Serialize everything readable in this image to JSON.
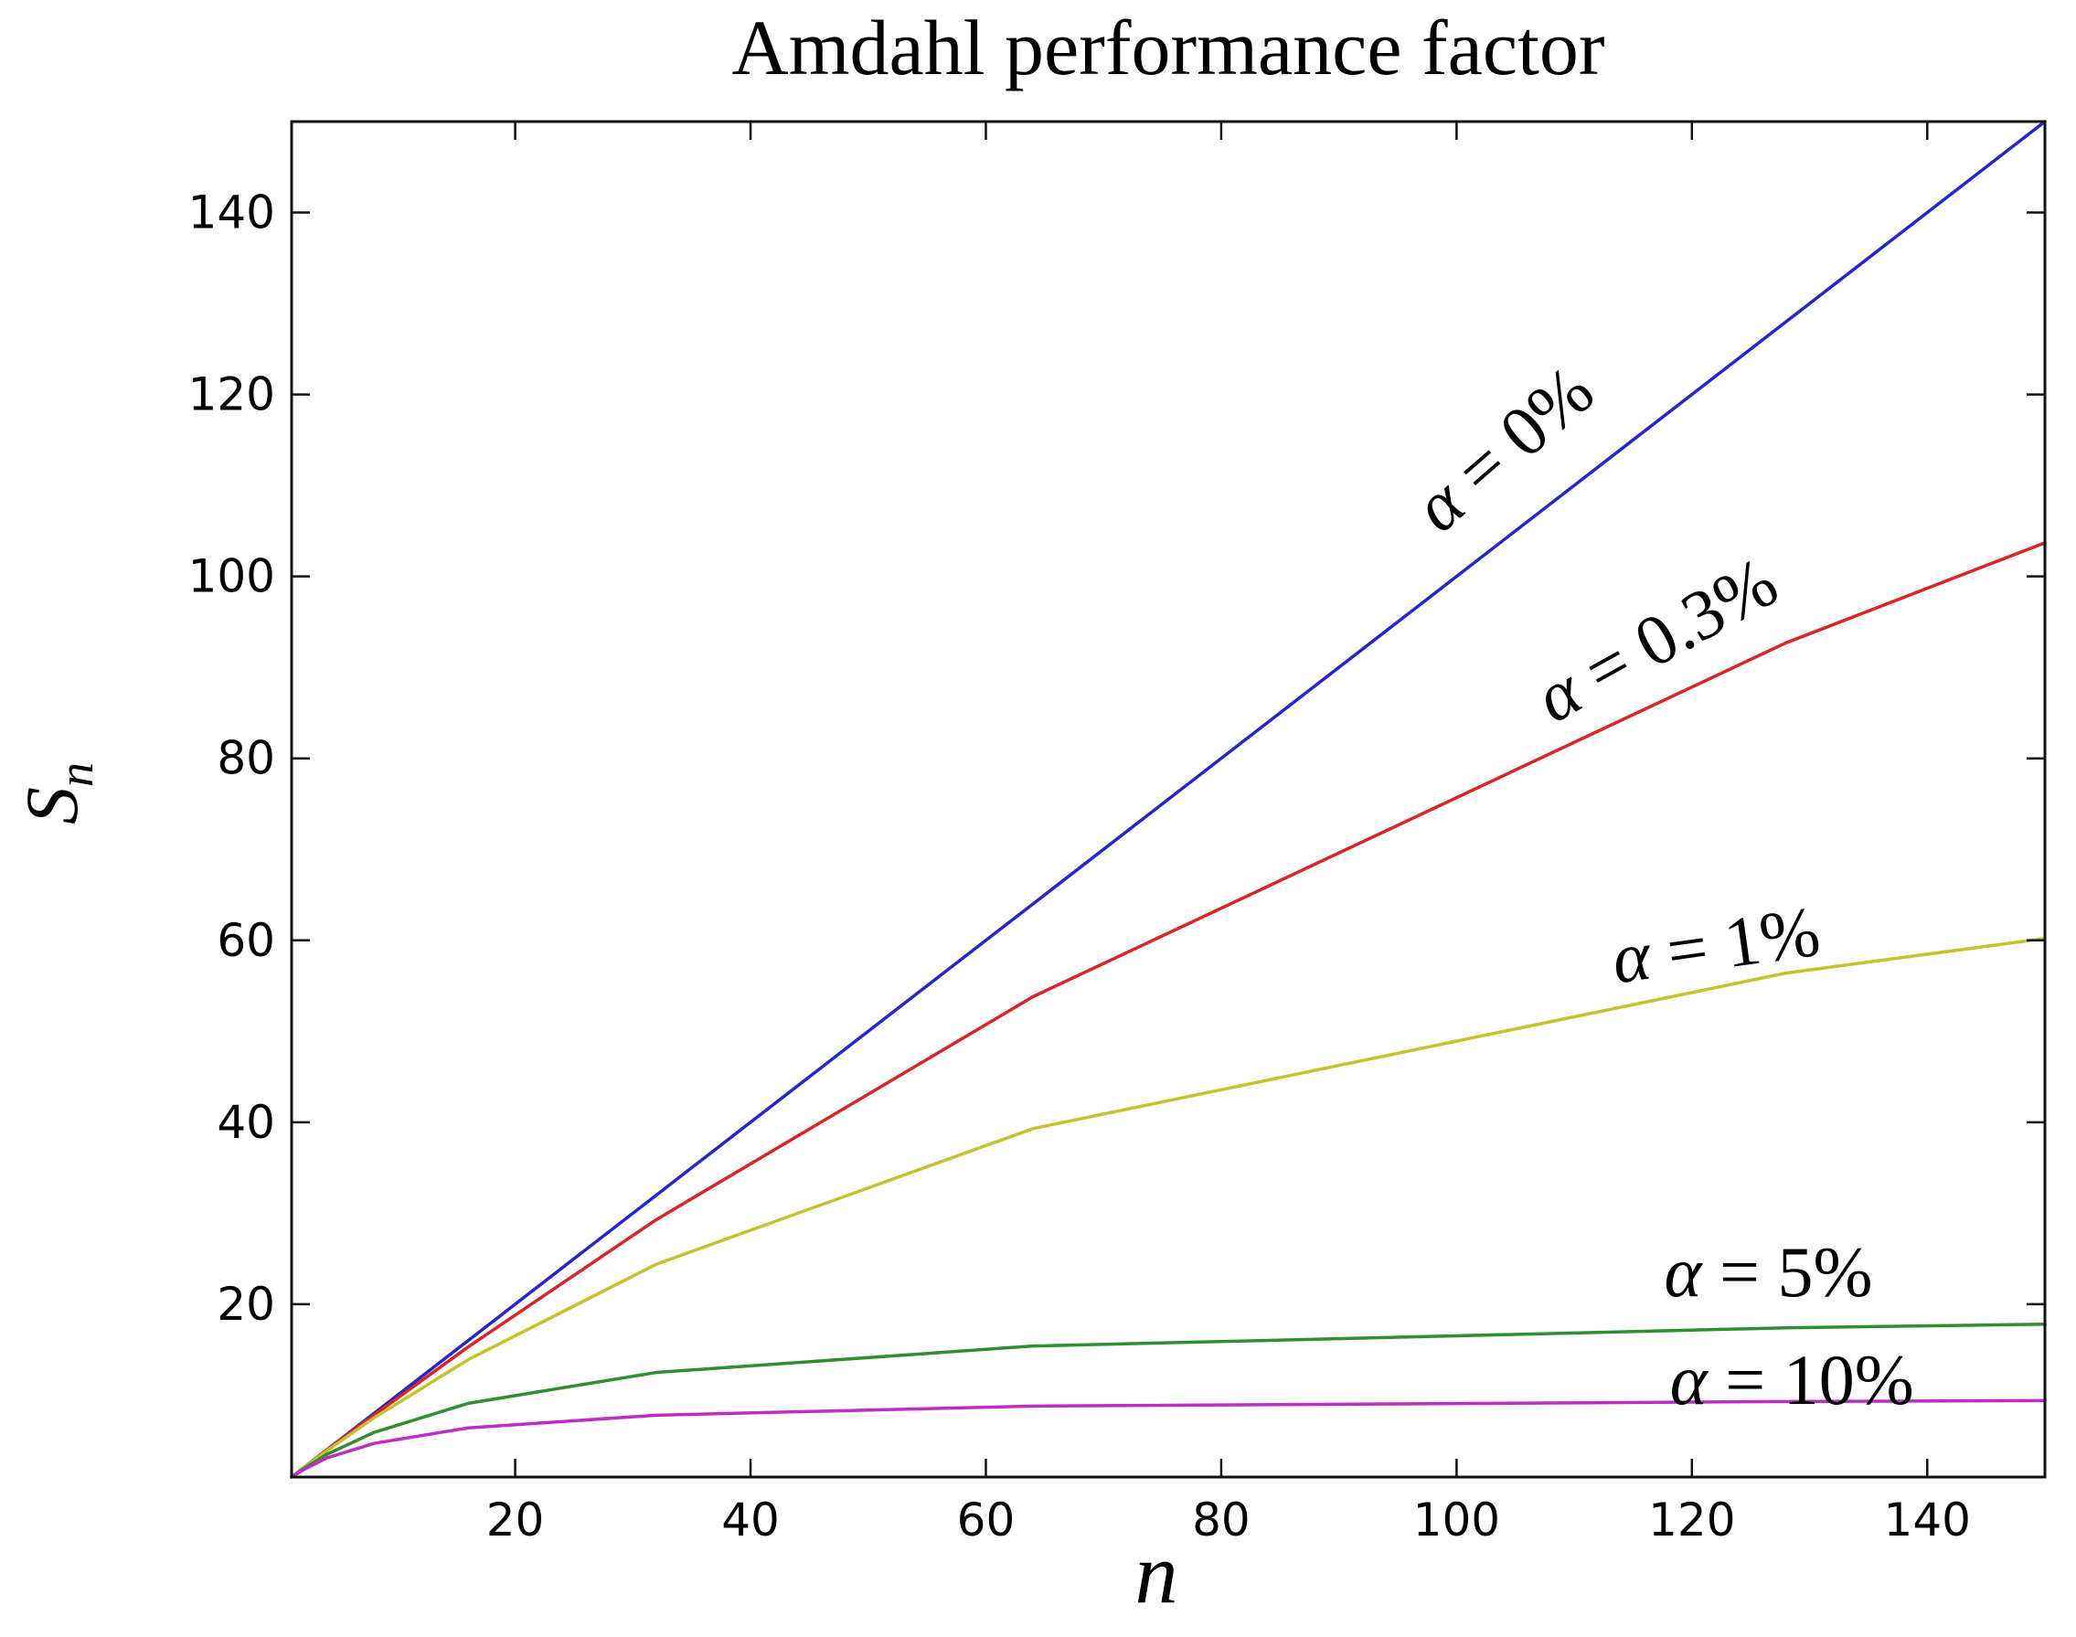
{
  "figure": {
    "background": "#ffffff",
    "axis_color": "#111111"
  },
  "chart_data": {
    "type": "line",
    "title": "Amdahl performance factor",
    "xlabel": "n",
    "ylabel_main": "S",
    "ylabel_sub": "n",
    "xlim": [
      1,
      150
    ],
    "ylim": [
      1,
      150
    ],
    "x_ticks": [
      20,
      40,
      60,
      80,
      100,
      120,
      140
    ],
    "y_ticks": [
      20,
      40,
      60,
      80,
      100,
      120,
      140
    ],
    "grid": false,
    "x": [
      1,
      2,
      4,
      8,
      16,
      32,
      64,
      128,
      150
    ],
    "series": [
      {
        "name": "alpha-0pct",
        "label": "α = 0%",
        "color": "#2626cc",
        "values": [
          1,
          2,
          4,
          8,
          16,
          32,
          64,
          128,
          150
        ]
      },
      {
        "name": "alpha-0-3pct",
        "label": "α = 0.3%",
        "color": "#d92525",
        "values": [
          1,
          2,
          4,
          7.8,
          15.3,
          29.3,
          53.8,
          92.7,
          103.7
        ]
      },
      {
        "name": "alpha-1pct",
        "label": "α = 1%",
        "color": "#c3c32e",
        "values": [
          1,
          2,
          3.9,
          7.5,
          13.9,
          24.4,
          39.3,
          56.4,
          60.2
        ]
      },
      {
        "name": "alpha-5pct",
        "label": "α = 5%",
        "color": "#2f8f2f",
        "values": [
          1,
          1.9,
          3.5,
          5.9,
          9.1,
          12.5,
          15.4,
          17.4,
          17.8
        ]
      },
      {
        "name": "alpha-10pct",
        "label": "α = 10%",
        "color": "#bd2fc4",
        "values": [
          1,
          1.8,
          3.1,
          4.7,
          6.4,
          7.8,
          8.8,
          9.3,
          9.4
        ]
      }
    ],
    "annotations": [
      {
        "text": "α = 0%",
        "x": 104,
        "y": 114,
        "rotation": -41
      },
      {
        "text": "α = 0.3%",
        "x": 117,
        "y": 93,
        "rotation": -29
      },
      {
        "text": "α = 1%",
        "x": 122,
        "y": 59.5,
        "rotation": -8
      },
      {
        "text": "α = 5%",
        "x": 126.5,
        "y": 23.5,
        "rotation": 0
      },
      {
        "text": "α = 10%",
        "x": 128.5,
        "y": 11.7,
        "rotation": 0
      }
    ]
  }
}
